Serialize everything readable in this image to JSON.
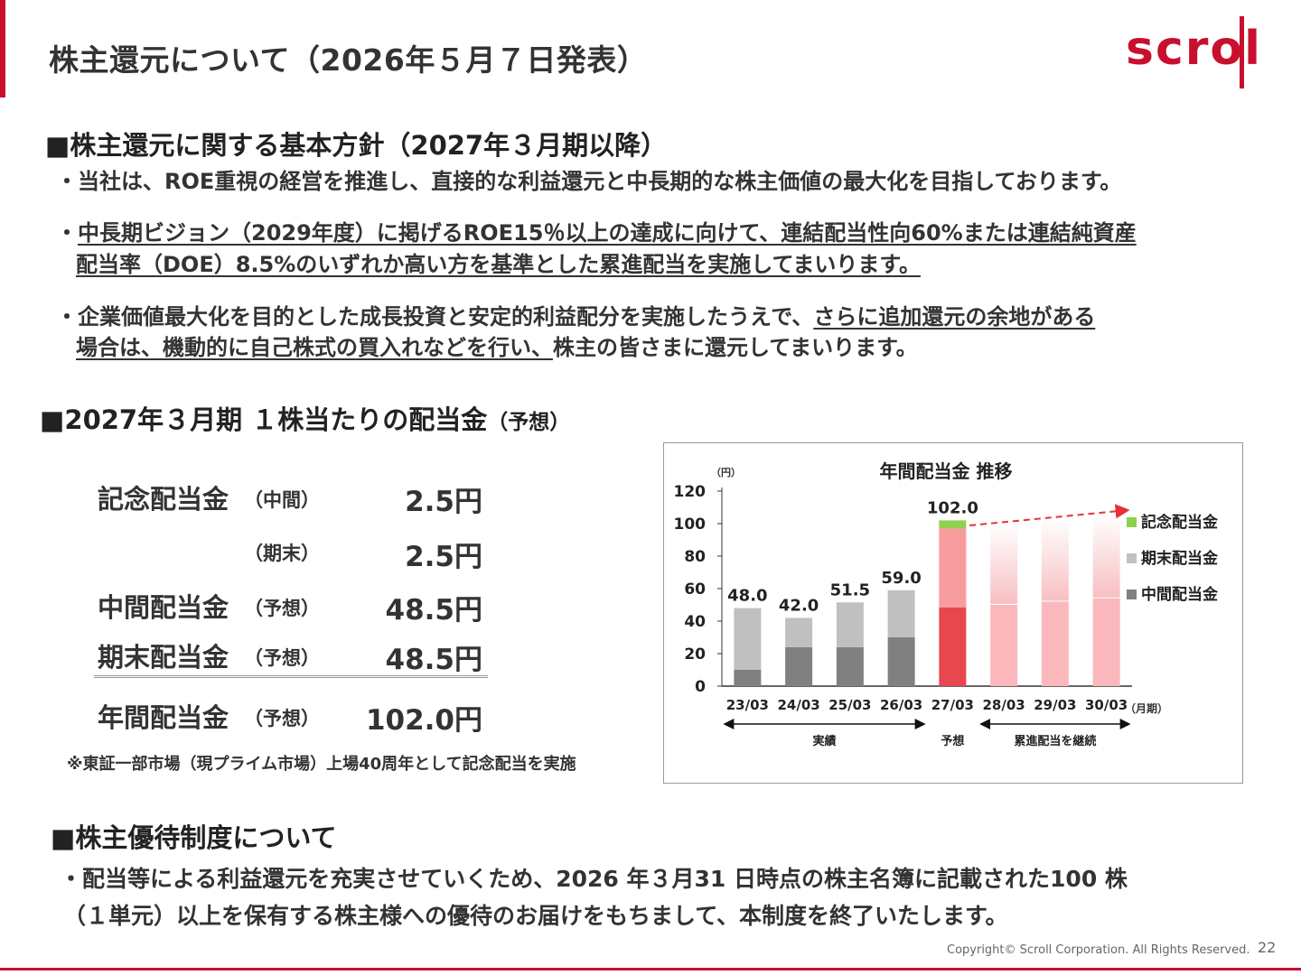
{
  "header": {
    "title": "株主還元について（2026年５月７日発表）",
    "logo_text": "scrol"
  },
  "policy": {
    "heading": "■株主還元に関する基本方針（2027年３月期以降）",
    "bullet1": "・当社は、ROE重視の経営を推進し、直接的な利益還元と中長期的な株主価値の最大化を目指しております。",
    "bullet2_line1": "中長期ビジョン（2029年度）に掲げるROE15％以上の達成に向けて、連結配当性向60%または連結純資産",
    "bullet2_line2": "配当率（DOE）8.5%のいずれか高い方を基準とした累進配当を実施してまいります。",
    "bullet3_line1_plain": "企業価値最大化を目的とした成長投資と安定的利益配分を実施したうえで、",
    "bullet3_line1_ul": "さらに追加還元の余地がある",
    "bullet3_line2_ul": "場合は、機動的に自己株式の買入れなどを行い、",
    "bullet3_line2_plain": "株主の皆さまに還元してまいります。",
    "bullet_mark": "・"
  },
  "dividend": {
    "heading": "■2027年３月期 １株当たりの配当金",
    "heading_suffix": "（予想）",
    "rows": [
      {
        "label": "記念配当金",
        "sub": "（中間）",
        "value": "2.5円"
      },
      {
        "label": "",
        "sub": "（期末）",
        "value": "2.5円"
      },
      {
        "label": "中間配当金",
        "sub": "（予想）",
        "value": "48.5円"
      },
      {
        "label": "期末配当金",
        "sub": "（予想）",
        "value": "48.5円"
      }
    ],
    "total": {
      "label": "年間配当金",
      "sub": "（予想）",
      "value": "102.0円"
    },
    "note": "※東証一部市場（現プライム市場）上場40周年として記念配当を実施"
  },
  "chart_data": {
    "type": "bar",
    "title": "年間配当金 推移",
    "y_unit": "（円）",
    "x_unit": "（月期）",
    "ylim": [
      0,
      120
    ],
    "yticks": [
      0,
      20,
      40,
      60,
      80,
      100,
      120
    ],
    "categories": [
      "23/03",
      "24/03",
      "25/03",
      "26/03",
      "27/03",
      "28/03",
      "29/03",
      "30/03"
    ],
    "series": [
      {
        "name": "中間配当金",
        "values": [
          10,
          24,
          24,
          30,
          48.5,
          null,
          null,
          null
        ],
        "color": "#808080",
        "forecast_color": "#e8474f"
      },
      {
        "name": "期末配当金",
        "values": [
          38,
          18,
          27.5,
          29,
          48.5,
          null,
          null,
          null
        ],
        "color": "#c0c0c0",
        "forecast_color": "#f89ca0"
      },
      {
        "name": "記念配当金",
        "values": [
          0,
          0,
          0,
          0,
          5,
          null,
          null,
          null
        ],
        "color": "#8fd14f"
      }
    ],
    "totals": [
      "48.0",
      "42.0",
      "51.5",
      "59.0",
      "102.0",
      "",
      "",
      ""
    ],
    "ghost_bars": [
      {
        "category": "28/03",
        "lower": 50,
        "upper": 100
      },
      {
        "category": "29/03",
        "lower": 52,
        "upper": 103
      },
      {
        "category": "30/03",
        "lower": 54,
        "upper": 106
      }
    ],
    "periods": [
      {
        "label": "実績",
        "from": "23/03",
        "to": "26/03"
      },
      {
        "label": "予想",
        "from": "27/03",
        "to": "27/03"
      },
      {
        "label": "累進配当を継続",
        "from": "28/03",
        "to": "30/03"
      }
    ],
    "legend_position": "right",
    "grid": false,
    "colors": {
      "trend_arrow": "#e8303a",
      "axis": "#333333"
    }
  },
  "benefit": {
    "heading": "■株主優待制度について",
    "line1": "・配当等による利益還元を充実させていくため、2026 年３月31 日時点の株主名簿に記載された100 株",
    "line2": "（１単元）以上を保有する株主様への優待のお届けをもちまして、本制度を終了いたします。"
  },
  "footer": {
    "copyright": "Copyright© Scroll Corporation. All Rights Reserved.",
    "page": "22"
  }
}
